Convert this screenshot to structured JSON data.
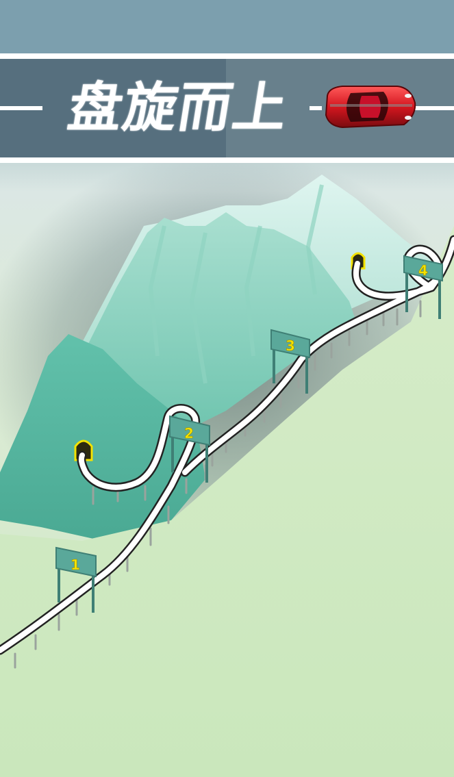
{
  "banner": {
    "title": "盘旋而上"
  },
  "checkpoints": [
    {
      "label": "1"
    },
    {
      "label": "2"
    },
    {
      "label": "3"
    },
    {
      "label": "4"
    }
  ],
  "colors": {
    "sky_top": "#6f98a6",
    "banner_band": "#4f6b7b",
    "stripe": "#ffffff",
    "mountain": "#5fbea7",
    "mountain_light": "#c9eee5",
    "grass": "#cfe9c1",
    "road": "#ffffff",
    "sign": "#5aa89a",
    "sign_text": "#f4e200",
    "car_body": "#d4161f"
  }
}
